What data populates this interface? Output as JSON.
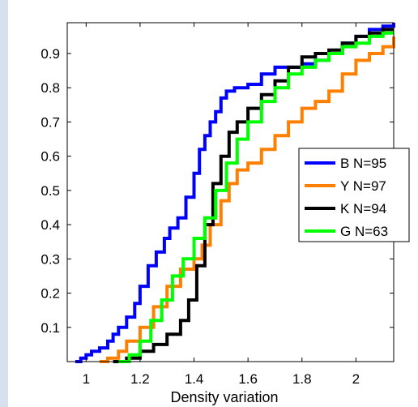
{
  "chart_data": {
    "type": "line",
    "title": "",
    "xlabel": "Density variation",
    "ylabel": "",
    "xlim": [
      0.93,
      2.14
    ],
    "ylim": [
      0.0,
      0.99
    ],
    "xticks": [
      1,
      1.2,
      1.4,
      1.6,
      1.8,
      2
    ],
    "xtick_labels": [
      "1",
      "1.2",
      "1.4",
      "1.6",
      "1.8",
      "2"
    ],
    "yticks": [
      0.1,
      0.2,
      0.3,
      0.4,
      0.5,
      0.6,
      0.7,
      0.8,
      0.9
    ],
    "ytick_labels": [
      "0.1",
      "0.2",
      "0.3",
      "0.4",
      "0.5",
      "0.6",
      "0.7",
      "0.8",
      "0.9"
    ],
    "grid": false,
    "legend_position": "right",
    "series": [
      {
        "name": "B N=95",
        "color": "#0000ff",
        "x": [
          0.96,
          0.98,
          1.0,
          1.02,
          1.05,
          1.08,
          1.1,
          1.12,
          1.15,
          1.18,
          1.2,
          1.23,
          1.26,
          1.29,
          1.31,
          1.34,
          1.37,
          1.4,
          1.42,
          1.44,
          1.46,
          1.48,
          1.5,
          1.52,
          1.55,
          1.6,
          1.65,
          1.7,
          1.75,
          1.8,
          1.85,
          1.9,
          1.95,
          2.0,
          2.05,
          2.1,
          2.14
        ],
        "y": [
          0.0,
          0.01,
          0.02,
          0.03,
          0.04,
          0.06,
          0.08,
          0.1,
          0.13,
          0.17,
          0.22,
          0.28,
          0.32,
          0.36,
          0.39,
          0.42,
          0.48,
          0.55,
          0.62,
          0.66,
          0.7,
          0.73,
          0.77,
          0.79,
          0.8,
          0.81,
          0.84,
          0.86,
          0.86,
          0.87,
          0.88,
          0.9,
          0.93,
          0.95,
          0.97,
          0.98,
          0.99
        ]
      },
      {
        "name": "Y N=97",
        "color": "#ff8000",
        "x": [
          1.05,
          1.08,
          1.12,
          1.15,
          1.2,
          1.25,
          1.3,
          1.35,
          1.4,
          1.43,
          1.46,
          1.5,
          1.53,
          1.56,
          1.6,
          1.65,
          1.7,
          1.75,
          1.8,
          1.85,
          1.9,
          1.95,
          2.0,
          2.05,
          2.1,
          2.14
        ],
        "y": [
          0.0,
          0.01,
          0.03,
          0.06,
          0.1,
          0.16,
          0.22,
          0.27,
          0.3,
          0.34,
          0.4,
          0.47,
          0.52,
          0.56,
          0.58,
          0.62,
          0.66,
          0.7,
          0.74,
          0.76,
          0.79,
          0.84,
          0.88,
          0.9,
          0.92,
          0.95
        ]
      },
      {
        "name": "K N=94",
        "color": "#000000",
        "x": [
          1.1,
          1.15,
          1.2,
          1.25,
          1.3,
          1.35,
          1.38,
          1.41,
          1.44,
          1.47,
          1.5,
          1.53,
          1.56,
          1.6,
          1.65,
          1.7,
          1.75,
          1.8,
          1.85,
          1.9,
          1.95,
          2.0,
          2.05,
          2.1,
          2.14
        ],
        "y": [
          0.0,
          0.01,
          0.03,
          0.05,
          0.08,
          0.12,
          0.18,
          0.28,
          0.4,
          0.52,
          0.6,
          0.67,
          0.7,
          0.74,
          0.78,
          0.82,
          0.86,
          0.89,
          0.9,
          0.91,
          0.93,
          0.95,
          0.96,
          0.97,
          0.97
        ]
      },
      {
        "name": "G N=63",
        "color": "#00ff00",
        "x": [
          1.12,
          1.16,
          1.2,
          1.24,
          1.28,
          1.32,
          1.36,
          1.4,
          1.44,
          1.48,
          1.52,
          1.56,
          1.6,
          1.65,
          1.7,
          1.75,
          1.8,
          1.85,
          1.9,
          1.95,
          2.0,
          2.05,
          2.1,
          2.14
        ],
        "y": [
          0.0,
          0.02,
          0.06,
          0.12,
          0.18,
          0.25,
          0.3,
          0.36,
          0.42,
          0.5,
          0.58,
          0.65,
          0.7,
          0.76,
          0.8,
          0.84,
          0.86,
          0.88,
          0.9,
          0.92,
          0.93,
          0.95,
          0.96,
          0.96
        ]
      }
    ]
  }
}
